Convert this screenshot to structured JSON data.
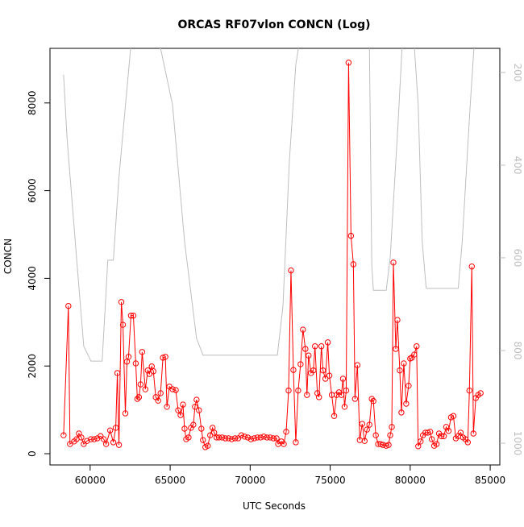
{
  "chart_data": {
    "type": "line",
    "title": "ORCAS RF07vlon CONCN (Log)",
    "x_label": "UTC Seconds",
    "y_label": "CONCN",
    "xlim": [
      57490,
      85600
    ],
    "xticks": [
      60000,
      65000,
      70000,
      75000,
      80000,
      85000
    ],
    "ylim": [
      -257,
      9246
    ],
    "yticks": [
      0,
      2000,
      4000,
      6000,
      8000
    ],
    "y2lim": [
      1047,
      148
    ],
    "y2ticks": [
      200,
      400,
      600,
      800,
      1000
    ],
    "series": [
      {
        "color": "#ff0000",
        "markers": true,
        "x": [
          58340,
          58640,
          58740,
          59000,
          59150,
          59300,
          59450,
          59600,
          59800,
          60050,
          60250,
          60450,
          60650,
          60850,
          61000,
          61250,
          61450,
          61600,
          61700,
          61800,
          61950,
          62050,
          62200,
          62300,
          62400,
          62550,
          62700,
          62850,
          62950,
          63050,
          63150,
          63250,
          63450,
          63600,
          63700,
          63850,
          63950,
          64100,
          64250,
          64400,
          64550,
          64700,
          64800,
          64950,
          65150,
          65350,
          65500,
          65650,
          65800,
          65900,
          66000,
          66150,
          66300,
          66450,
          66550,
          66650,
          66800,
          66950,
          67050,
          67200,
          67350,
          67500,
          67650,
          67750,
          67900,
          68050,
          68250,
          68450,
          68650,
          68850,
          69050,
          69250,
          69450,
          69650,
          69850,
          70050,
          70250,
          70450,
          70650,
          70850,
          71050,
          71250,
          71450,
          71650,
          71750,
          71950,
          72100,
          72250,
          72400,
          72550,
          72700,
          72850,
          73000,
          73150,
          73300,
          73450,
          73550,
          73650,
          73800,
          73950,
          74050,
          74200,
          74300,
          74450,
          74550,
          74700,
          74850,
          74950,
          75100,
          75250,
          75400,
          75550,
          75700,
          75800,
          75900,
          76000,
          76150,
          76300,
          76450,
          76550,
          76700,
          76850,
          77000,
          77150,
          77300,
          77450,
          77600,
          77700,
          77850,
          78000,
          78150,
          78300,
          78500,
          78650,
          78750,
          78850,
          78950,
          79100,
          79200,
          79350,
          79450,
          79600,
          79750,
          79900,
          80000,
          80100,
          80250,
          80400,
          80500,
          80650,
          80800,
          80950,
          81100,
          81250,
          81350,
          81500,
          81650,
          81800,
          81950,
          82100,
          82250,
          82400,
          82550,
          82700,
          82850,
          83000,
          83150,
          83300,
          83450,
          83600,
          83700,
          83850,
          83950,
          84100,
          84250,
          84400
        ],
        "values": [
          420,
          3370,
          220,
          280,
          330,
          460,
          370,
          220,
          290,
          330,
          330,
          350,
          400,
          330,
          220,
          530,
          260,
          590,
          1840,
          200,
          3460,
          2940,
          920,
          2100,
          2210,
          3150,
          3150,
          2060,
          1250,
          1290,
          1580,
          2320,
          1470,
          1900,
          1820,
          1990,
          1880,
          1290,
          1210,
          1380,
          2190,
          2210,
          1070,
          1530,
          1470,
          1450,
          990,
          880,
          1120,
          570,
          330,
          370,
          590,
          660,
          1070,
          1230,
          990,
          570,
          310,
          150,
          180,
          420,
          590,
          480,
          370,
          370,
          370,
          350,
          350,
          330,
          350,
          350,
          420,
          390,
          370,
          330,
          350,
          370,
          370,
          390,
          370,
          370,
          350,
          350,
          220,
          280,
          220,
          500,
          1440,
          4180,
          1910,
          260,
          1440,
          2040,
          2830,
          2390,
          1340,
          2240,
          1840,
          1900,
          2450,
          1380,
          1290,
          2450,
          1900,
          1710,
          2540,
          1780,
          1340,
          860,
          1340,
          1400,
          1340,
          1710,
          1070,
          1440,
          8920,
          4970,
          4320,
          1250,
          2020,
          310,
          680,
          290,
          550,
          660,
          1250,
          1200,
          420,
          220,
          220,
          200,
          180,
          200,
          420,
          610,
          4360,
          2390,
          3050,
          1900,
          940,
          2060,
          1140,
          1550,
          2170,
          2190,
          2260,
          2450,
          170,
          280,
          420,
          480,
          480,
          500,
          330,
          180,
          220,
          460,
          400,
          400,
          610,
          520,
          830,
          860,
          350,
          400,
          480,
          370,
          330,
          260,
          1440,
          4270,
          460,
          1270,
          1340,
          1380
        ]
      },
      {
        "color": "#bebebe",
        "markers": false,
        "axis": "y2",
        "x": [
          58340,
          58550,
          59150,
          59600,
          60050,
          60750,
          61000,
          61100,
          61450,
          61800,
          62550,
          63600,
          64400,
          65150,
          65900,
          66650,
          67050,
          69450,
          71700,
          72050,
          72450,
          72850,
          73050,
          77450,
          77600,
          77700,
          78500,
          78750,
          79250,
          79500,
          80250,
          80500,
          80750,
          81000,
          83000,
          83250,
          83750,
          84000
        ],
        "values": [
          205,
          339,
          600,
          791,
          823,
          823,
          670,
          605,
          605,
          426,
          140,
          140,
          148,
          270,
          565,
          774,
          810,
          810,
          810,
          704,
          391,
          183,
          140,
          140,
          617,
          670,
          670,
          600,
          304,
          140,
          140,
          270,
          565,
          666,
          666,
          565,
          270,
          140
        ]
      }
    ]
  }
}
